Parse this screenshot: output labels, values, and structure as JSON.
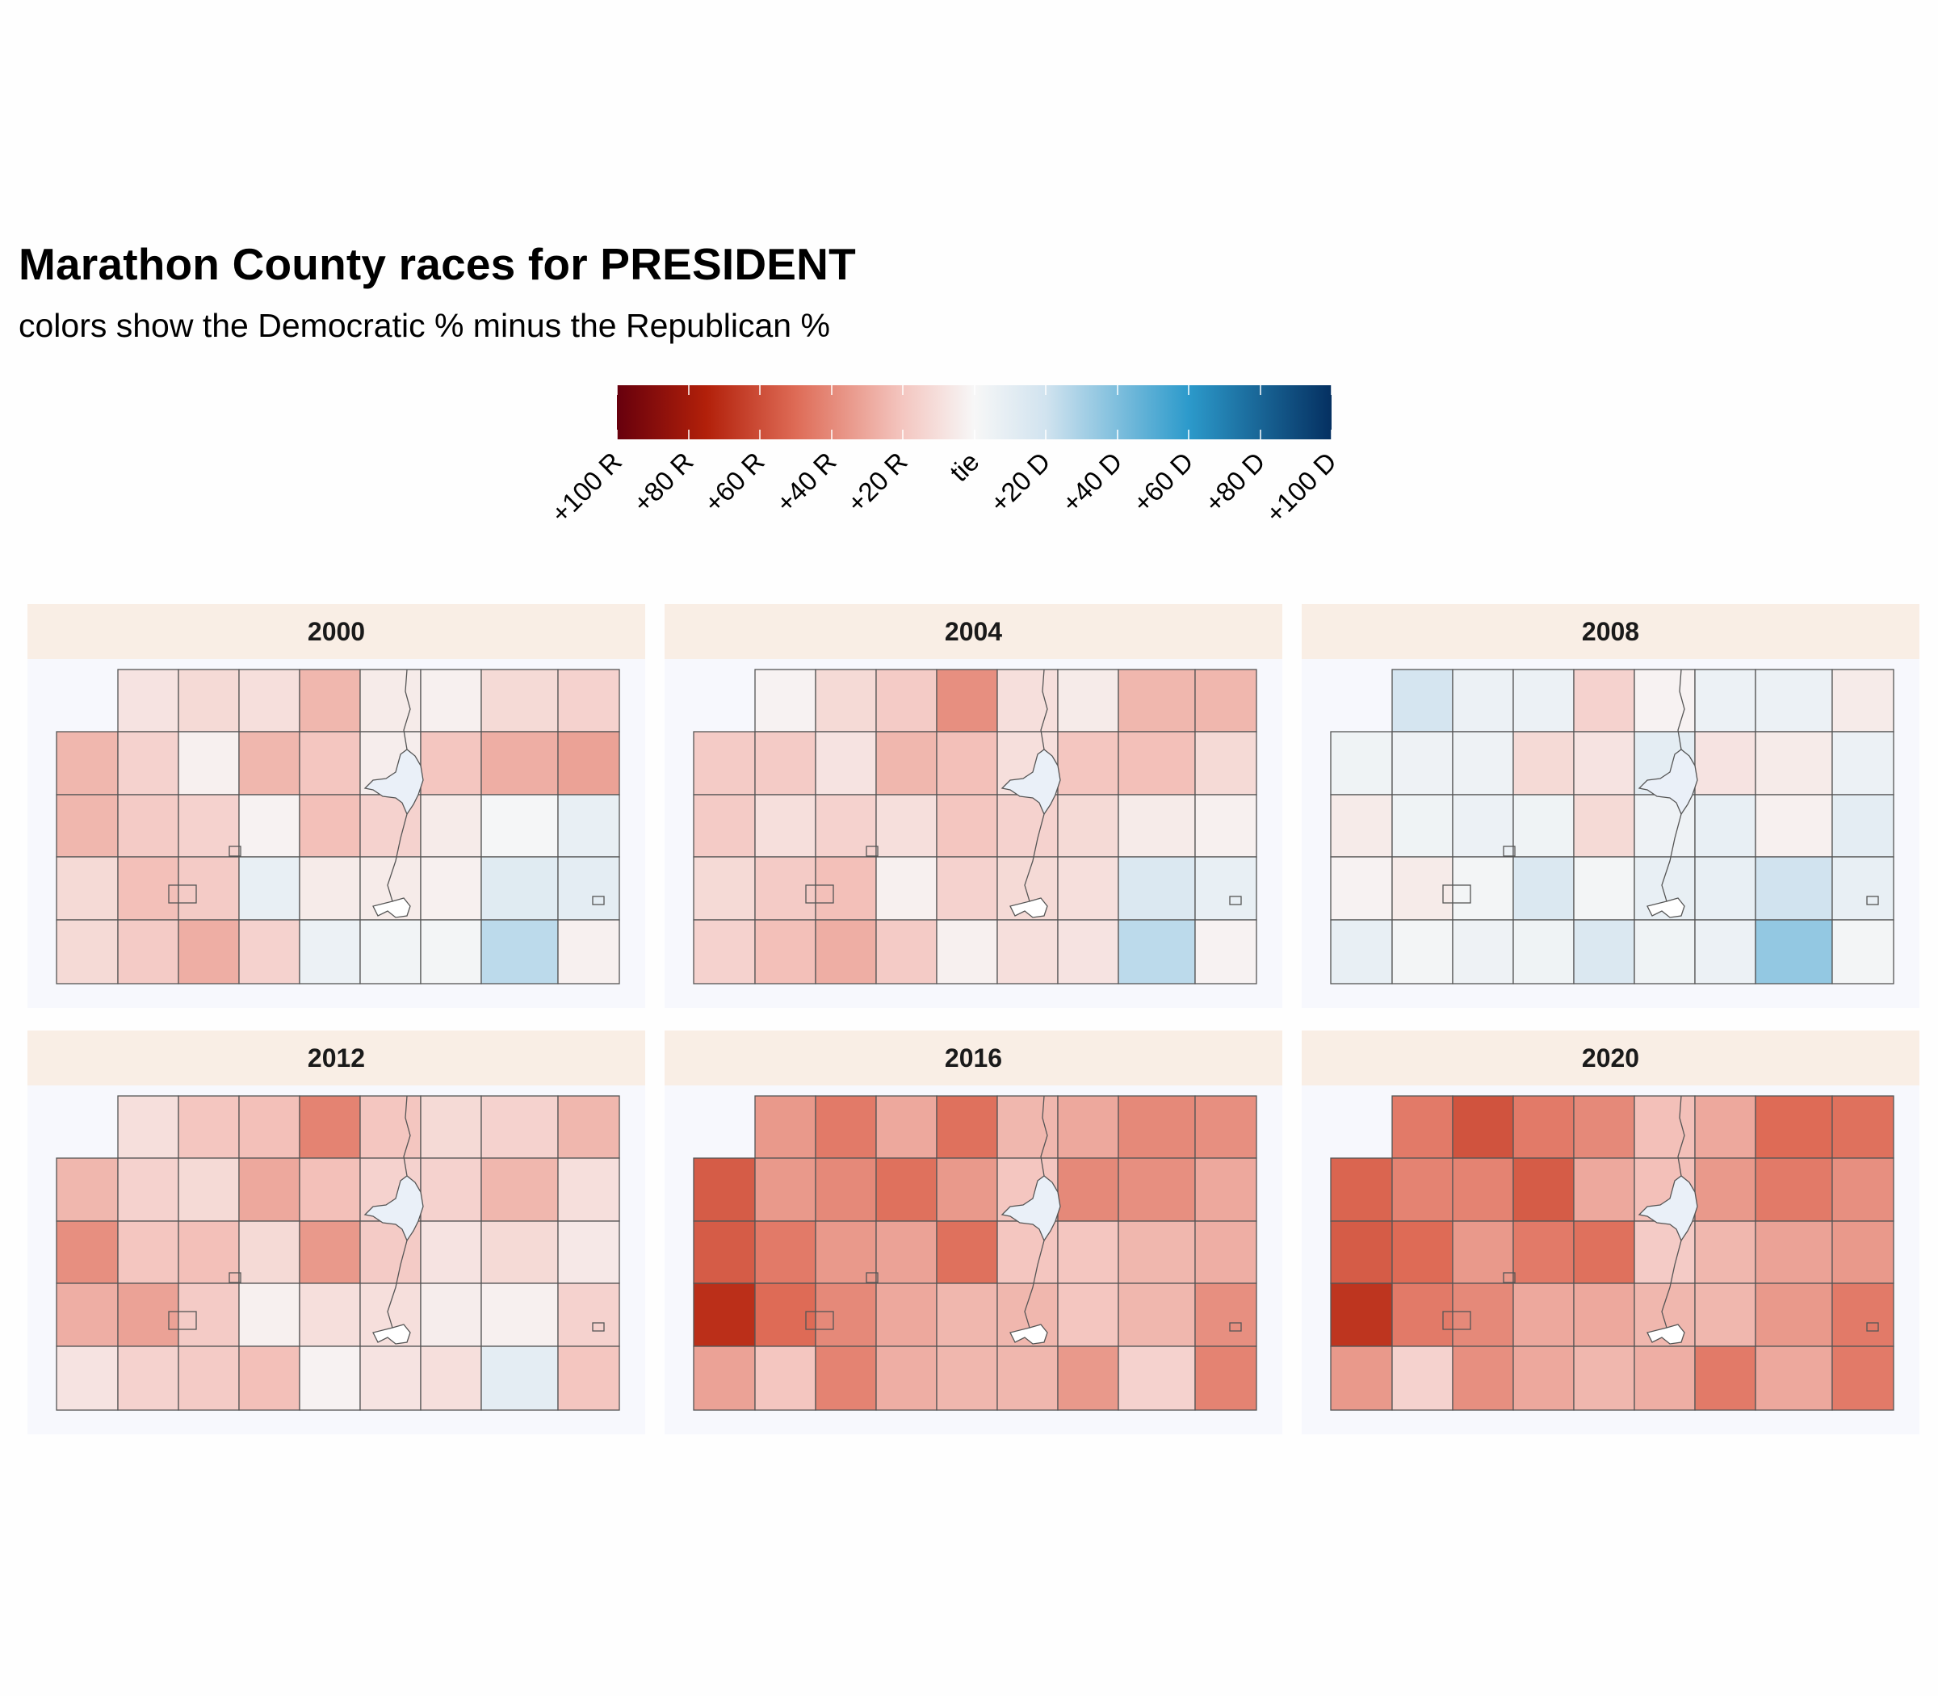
{
  "title": "Marathon County races for PRESIDENT",
  "subtitle": "colors show the Democratic % minus the Republican %",
  "legend": {
    "tick_labels": [
      "+100 R",
      "+80 R",
      "+60 R",
      "+40 R",
      "+20 R",
      "tie",
      "+20 D",
      "+40 D",
      "+60 D",
      "+80 D",
      "+100 D"
    ],
    "tick_values": [
      -100,
      -80,
      -60,
      -40,
      -20,
      0,
      20,
      40,
      60,
      80,
      100
    ],
    "colors": {
      "strong_r": "#67000d",
      "r": "#b2200a",
      "mid_r": "#de6b56",
      "light_r": "#f4c6c0",
      "neutral": "#f7f7f7",
      "light_d": "#d1e3ef",
      "mid_d": "#2c9acb",
      "strong_d": "#053061"
    }
  },
  "chart_data": {
    "type": "choropleth",
    "title": "Marathon County races for PRESIDENT",
    "subtitle": "colors show the Democratic % minus the Republican %",
    "value_scale": [
      -100,
      100
    ],
    "units": "Democratic % minus Republican %",
    "panels": [
      {
        "year": "2000",
        "grid_margins": [
          [
            null,
            -8,
            -12,
            -10,
            -25,
            -5,
            -3,
            -12,
            -15
          ],
          [
            -25,
            -15,
            -3,
            -25,
            -20,
            -4,
            -20,
            -28,
            -32
          ],
          [
            -25,
            -18,
            -15,
            -2,
            -22,
            -15,
            -5,
            1,
            8
          ],
          [
            -12,
            -22,
            -18,
            8,
            -5,
            -5,
            -3,
            12,
            10
          ],
          [
            -12,
            -18,
            -28,
            -15,
            6,
            3,
            2,
            25,
            -3
          ]
        ]
      },
      {
        "year": "2004",
        "grid_margins": [
          [
            null,
            -2,
            -12,
            -18,
            -38,
            -10,
            -5,
            -25,
            -25
          ],
          [
            -18,
            -18,
            -8,
            -25,
            -22,
            -10,
            -20,
            -22,
            -12
          ],
          [
            -18,
            -10,
            -15,
            -10,
            -20,
            -15,
            -12,
            -5,
            -3
          ],
          [
            -12,
            -18,
            -22,
            -3,
            -15,
            -12,
            -10,
            15,
            8
          ],
          [
            -15,
            -22,
            -28,
            -18,
            -3,
            -10,
            -8,
            25,
            -2
          ]
        ]
      },
      {
        "year": "2008",
        "grid_margins": [
          [
            null,
            18,
            6,
            6,
            -15,
            -2,
            6,
            6,
            -5
          ],
          [
            4,
            5,
            5,
            -12,
            -8,
            10,
            -8,
            -5,
            6
          ],
          [
            -5,
            4,
            6,
            4,
            -12,
            5,
            8,
            -3,
            10
          ],
          [
            -2,
            -5,
            2,
            15,
            2,
            8,
            8,
            20,
            8
          ],
          [
            8,
            2,
            5,
            4,
            15,
            4,
            6,
            35,
            2
          ]
        ]
      },
      {
        "year": "2012",
        "grid_margins": [
          [
            null,
            -10,
            -20,
            -22,
            -42,
            -20,
            -12,
            -15,
            -25
          ],
          [
            -25,
            -15,
            -12,
            -30,
            -22,
            -15,
            -15,
            -25,
            -10
          ],
          [
            -38,
            -20,
            -22,
            -12,
            -35,
            -18,
            -8,
            -12,
            -6
          ],
          [
            -28,
            -32,
            -18,
            -3,
            -10,
            -10,
            -4,
            -3,
            -15
          ],
          [
            -8,
            -15,
            -18,
            -22,
            -2,
            -8,
            -10,
            10,
            -20
          ]
        ]
      },
      {
        "year": "2016",
        "grid_margins": [
          [
            null,
            -35,
            -45,
            -30,
            -48,
            -25,
            -30,
            -40,
            -38
          ],
          [
            -55,
            -35,
            -40,
            -48,
            -35,
            -20,
            -40,
            -38,
            -30
          ],
          [
            -55,
            -45,
            -35,
            -32,
            -48,
            -20,
            -20,
            -25,
            -28
          ],
          [
            -70,
            -50,
            -40,
            -30,
            -25,
            -25,
            -20,
            -25,
            -38
          ],
          [
            -32,
            -20,
            -42,
            -28,
            -25,
            -25,
            -35,
            -15,
            -42
          ]
        ]
      },
      {
        "year": "2020",
        "grid_margins": [
          [
            null,
            -45,
            -58,
            -45,
            -40,
            -22,
            -30,
            -50,
            -48
          ],
          [
            -52,
            -42,
            -42,
            -55,
            -30,
            -22,
            -35,
            -45,
            -38
          ],
          [
            -55,
            -50,
            -35,
            -45,
            -48,
            -18,
            -25,
            -32,
            -35
          ],
          [
            -68,
            -45,
            -40,
            -30,
            -30,
            -25,
            -25,
            -35,
            -45
          ],
          [
            -35,
            -15,
            -38,
            -30,
            -25,
            -28,
            -45,
            -30,
            -45
          ]
        ]
      }
    ]
  }
}
